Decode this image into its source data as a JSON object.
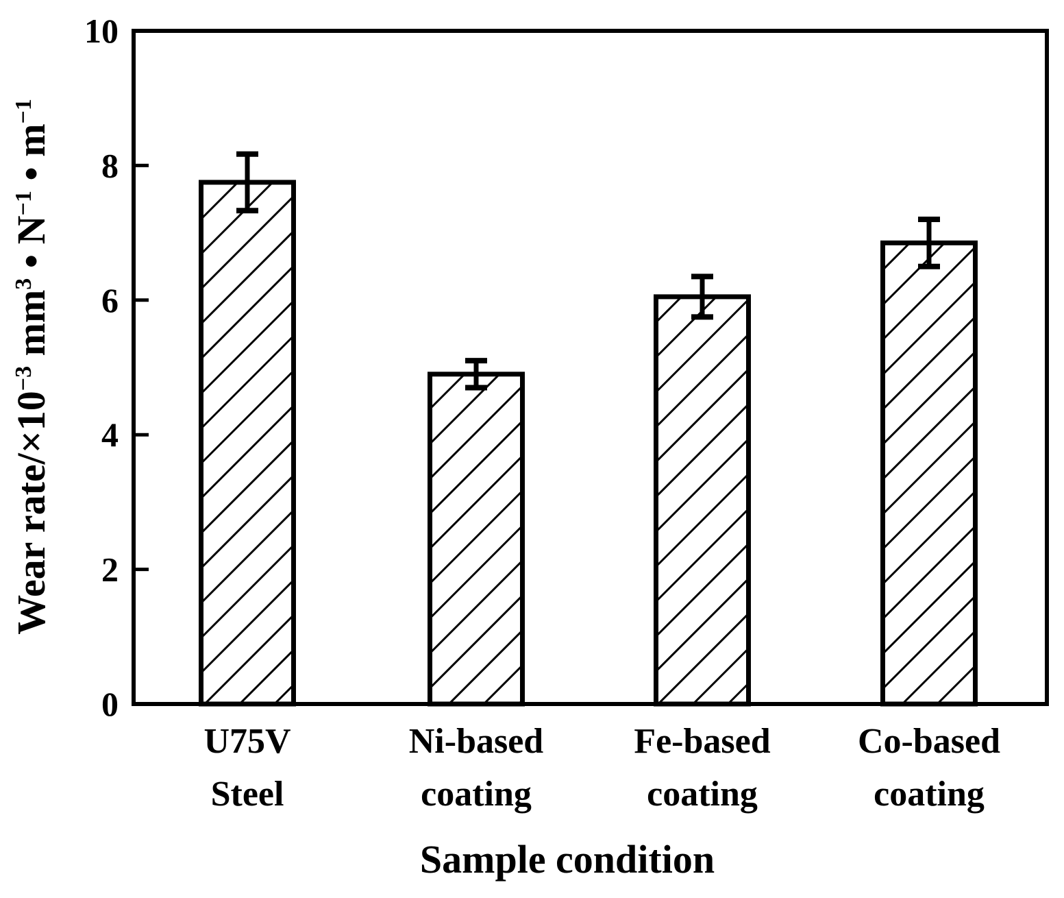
{
  "chart_data": {
    "type": "bar",
    "title": "",
    "xlabel": "Sample condition",
    "ylabel": {
      "base": "Wear rate/×10",
      "exp1": "−3",
      "mid": " mm",
      "exp2": "3",
      "dot1": " • N",
      "exp3": "−1",
      "dot2": " • m",
      "exp4": "−1"
    },
    "ylim": [
      0,
      10
    ],
    "yticks": [
      0,
      2,
      4,
      6,
      8,
      10
    ],
    "categories": [
      {
        "line1": "U75V",
        "line2": "Steel"
      },
      {
        "line1": "Ni-based",
        "line2": "coating"
      },
      {
        "line1": "Fe-based",
        "line2": "coating"
      },
      {
        "line1": "Co-based",
        "line2": "coating"
      }
    ],
    "values": [
      7.75,
      4.9,
      6.05,
      6.85
    ],
    "errors": [
      0.42,
      0.2,
      0.3,
      0.35
    ],
    "bar_fill": "hatched",
    "colors": {
      "stroke": "#000000",
      "background": "#ffffff"
    }
  }
}
